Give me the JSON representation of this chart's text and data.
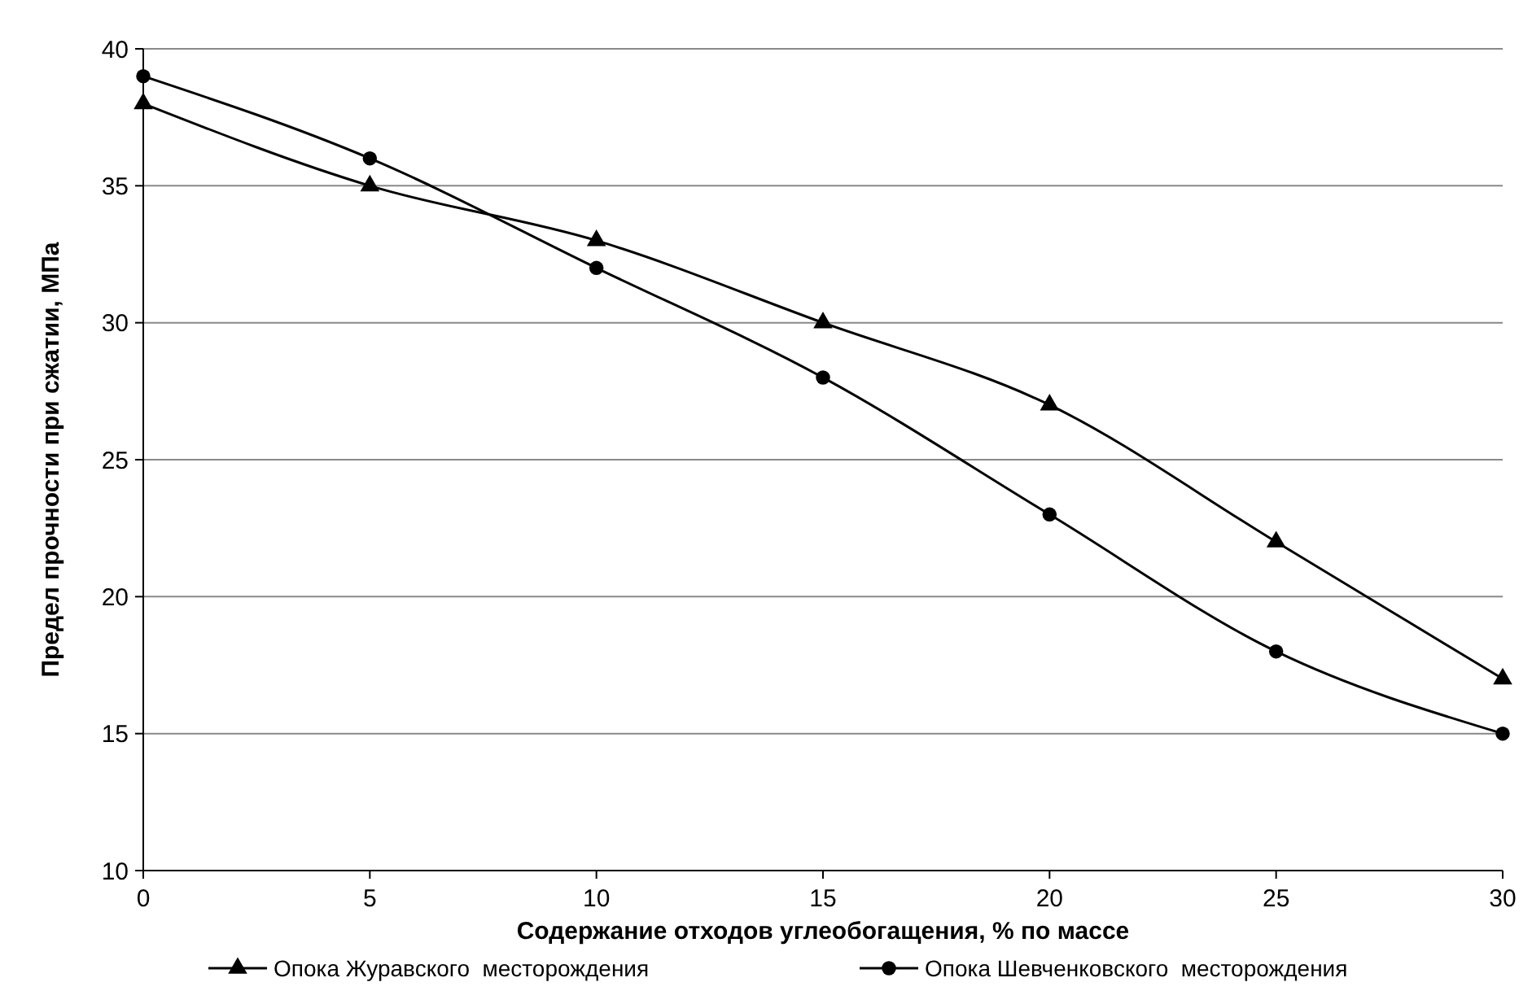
{
  "chart_data": {
    "type": "line",
    "xlabel": "Содержание отходов углеобогащения, % по массе",
    "ylabel": "Предел прочности при сжатии, МПа",
    "x": [
      0,
      5,
      10,
      15,
      20,
      25,
      30
    ],
    "series": [
      {
        "name": "Опока Журавского  месторождения",
        "color": "#000000",
        "marker": "triangle",
        "values": [
          38,
          35,
          33,
          30,
          27,
          22,
          17
        ]
      },
      {
        "name": "Опока Шевченковского  месторождения",
        "color": "#000000",
        "marker": "circle",
        "values": [
          39,
          36,
          32,
          28,
          23,
          18,
          15
        ]
      }
    ],
    "xlim": [
      0,
      30
    ],
    "xticks": [
      0,
      5,
      10,
      15,
      20,
      25,
      30
    ],
    "ylim": [
      10,
      40
    ],
    "yticks": [
      10,
      15,
      20,
      25,
      30,
      35,
      40
    ],
    "grid": "y",
    "legend": "bottom",
    "line_style": "solid"
  }
}
